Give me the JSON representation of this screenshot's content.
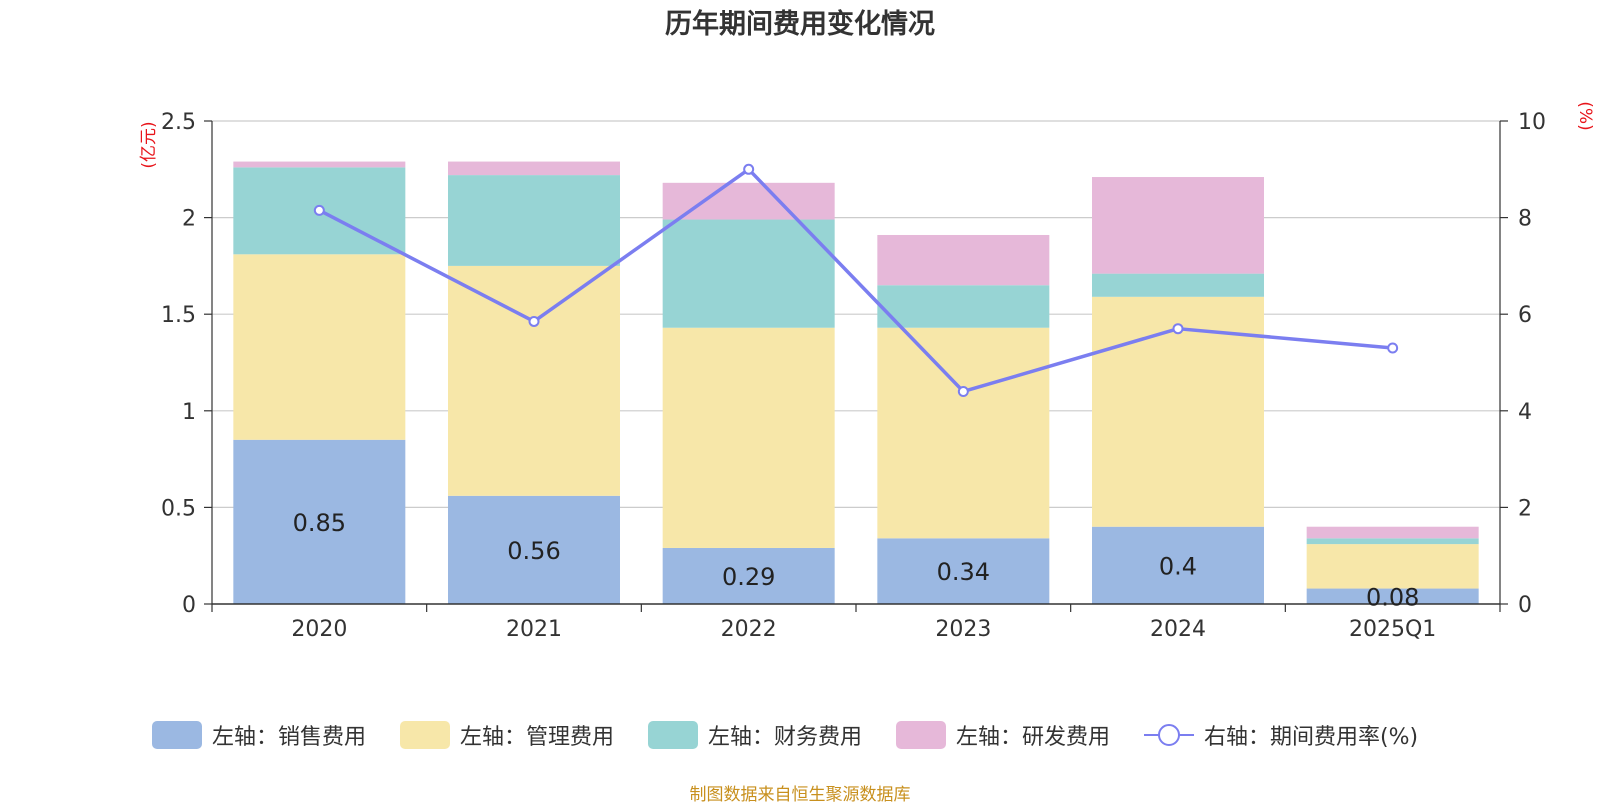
{
  "title": "历年期间费用变化情况",
  "source": "制图数据来自恒生聚源数据库",
  "colors": {
    "sales": "#9bb8e2",
    "admin": "#f7e7a9",
    "finance": "#97d4d4",
    "rd": "#e6b8d9",
    "line": "#7b7ef0",
    "axis_unit": "#e8141a"
  },
  "chart_data": {
    "type": "bar",
    "stacked": true,
    "title": "历年期间费用变化情况",
    "categories": [
      "2020",
      "2021",
      "2022",
      "2023",
      "2024",
      "2025Q1"
    ],
    "left_axis": {
      "unit_label": "(亿元)",
      "ylim": [
        0,
        2.5
      ],
      "ticks": [
        "0",
        "0.5",
        "1",
        "1.5",
        "2",
        "2.5"
      ],
      "tick_values": [
        0,
        0.5,
        1,
        1.5,
        2,
        2.5
      ]
    },
    "right_axis": {
      "unit_label": "(%)",
      "ylim": [
        0,
        10
      ],
      "ticks": [
        "0",
        "2",
        "4",
        "6",
        "8",
        "10"
      ],
      "tick_values": [
        0,
        2,
        4,
        6,
        8,
        10
      ]
    },
    "series": [
      {
        "name": "左轴：销售费用",
        "type": "bar",
        "axis": "left",
        "color_key": "sales",
        "values": [
          0.85,
          0.56,
          0.29,
          0.34,
          0.4,
          0.08
        ],
        "labels": [
          "0.85",
          "0.56",
          "0.29",
          "0.34",
          "0.4",
          "0.08"
        ]
      },
      {
        "name": "左轴：管理费用",
        "type": "bar",
        "axis": "left",
        "color_key": "admin",
        "values": [
          0.96,
          1.19,
          1.14,
          1.09,
          1.19,
          0.23
        ]
      },
      {
        "name": "左轴：财务费用",
        "type": "bar",
        "axis": "left",
        "color_key": "finance",
        "values": [
          0.45,
          0.47,
          0.56,
          0.22,
          0.12,
          0.03
        ]
      },
      {
        "name": "左轴：研发费用",
        "type": "bar",
        "axis": "left",
        "color_key": "rd",
        "values": [
          0.03,
          0.07,
          0.19,
          0.26,
          0.5,
          0.06
        ]
      },
      {
        "name": "右轴：期间费用率(%)",
        "type": "line",
        "axis": "right",
        "color_key": "line",
        "values": [
          8.15,
          5.85,
          9.0,
          4.4,
          5.7,
          5.3
        ]
      }
    ]
  }
}
